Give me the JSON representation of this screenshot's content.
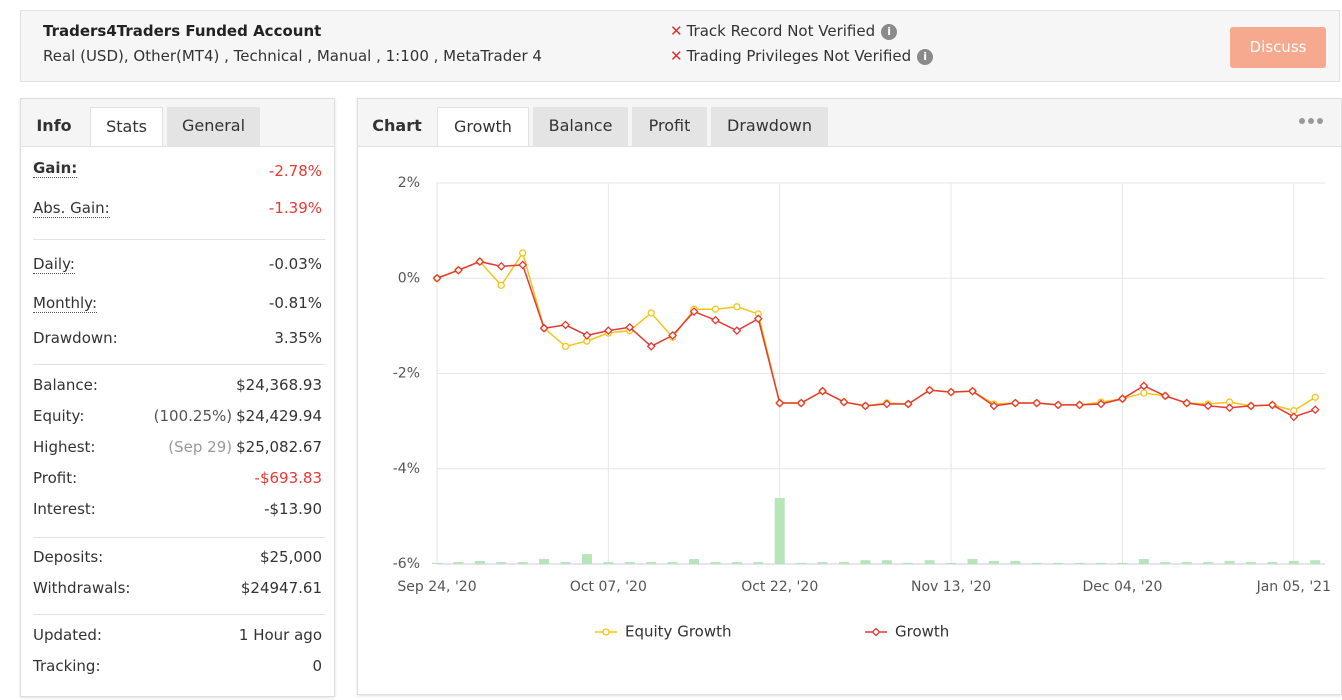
{
  "header": {
    "title": "Traders4Traders Funded Account",
    "subtitle": "Real (USD), Other(MT4) , Technical , Manual , 1:100 , MetaTrader 4",
    "warnings": [
      "Track Record Not Verified",
      "Trading Privileges Not Verified"
    ],
    "button": "Discuss"
  },
  "stats": {
    "tabs": [
      "Info",
      "Stats",
      "General"
    ],
    "groups": [
      [
        {
          "label": "Gain:",
          "value": "-2.78%"
        },
        {
          "label": "Abs. Gain:",
          "value": "-1.39%"
        }
      ],
      [
        {
          "label": "Daily:",
          "value": "-0.03%"
        },
        {
          "label": "Monthly:",
          "value": "-0.81%"
        },
        {
          "label": "Drawdown:",
          "value": "3.35%"
        }
      ],
      [
        {
          "label": "Balance:",
          "value": "$24,368.93"
        },
        {
          "label": "Equity:",
          "note": "(100.25%)",
          "value": "$24,429.94"
        },
        {
          "label": "Highest:",
          "note": "(Sep 29)",
          "value": "$25,082.67"
        },
        {
          "label": "Profit:",
          "value": "-$693.83"
        },
        {
          "label": "Interest:",
          "value": "-$13.90"
        }
      ],
      [
        {
          "label": "Deposits:",
          "value": "$25,000"
        },
        {
          "label": "Withdrawals:",
          "value": "$24947.61"
        }
      ],
      [
        {
          "label": "Updated:",
          "value": "1 Hour ago"
        },
        {
          "label": "Tracking:",
          "value": "0"
        }
      ]
    ]
  },
  "chart_tabs": [
    "Chart",
    "Growth",
    "Balance",
    "Profit",
    "Drawdown"
  ],
  "chart_data": {
    "type": "line",
    "categories": [
      "Sep 24, '20",
      null,
      null,
      null,
      null,
      null,
      null,
      null,
      "Oct 07, '20",
      null,
      null,
      null,
      null,
      null,
      null,
      null,
      "Oct 22, '20",
      null,
      null,
      null,
      null,
      null,
      null,
      null,
      "Nov 13, '20",
      null,
      null,
      null,
      null,
      null,
      null,
      null,
      "Dec 04, '20",
      null,
      null,
      null,
      null,
      null,
      null,
      null,
      "Jan 05, '21",
      null
    ],
    "series": [
      {
        "type": "bar",
        "axis": "y2",
        "color": "#b7e4b9",
        "values": [
          0.3,
          0.5,
          0.8,
          0.5,
          0.5,
          1.3,
          0.5,
          2.6,
          0.5,
          0.5,
          0.5,
          0.5,
          1.3,
          0.5,
          0.5,
          0.5,
          17.3,
          0.3,
          0.5,
          0.5,
          1,
          1,
          0.3,
          1,
          0.3,
          1.3,
          0.8,
          0.8,
          0.3,
          0.3,
          0.3,
          0.3,
          0.3,
          1.3,
          0.5,
          0.5,
          0.5,
          0.8,
          0.5,
          0.5,
          0.8,
          1
        ]
      },
      {
        "name": "Equity Growth",
        "color": "#f5c518",
        "marker": "circle",
        "values": [
          0,
          0.17,
          0.35,
          -0.15,
          0.53,
          -1.05,
          -1.43,
          -1.32,
          -1.15,
          -1.1,
          -0.73,
          -1.24,
          -0.65,
          -0.65,
          -0.6,
          -0.75,
          -2.62,
          -2.62,
          -2.37,
          -2.6,
          -2.68,
          -2.62,
          -2.64,
          -2.35,
          -2.39,
          -2.37,
          -2.64,
          -2.62,
          -2.62,
          -2.66,
          -2.66,
          -2.6,
          -2.53,
          -2.41,
          -2.47,
          -2.62,
          -2.64,
          -2.6,
          -2.68,
          -2.66,
          -2.78,
          -2.5
        ]
      },
      {
        "name": "Growth",
        "color": "#e53935",
        "marker": "diamond",
        "values": [
          0,
          0.17,
          0.35,
          0.25,
          0.28,
          -1.05,
          -0.98,
          -1.2,
          -1.1,
          -1.03,
          -1.43,
          -1.2,
          -0.7,
          -0.88,
          -1.1,
          -0.85,
          -2.62,
          -2.62,
          -2.37,
          -2.6,
          -2.68,
          -2.64,
          -2.64,
          -2.35,
          -2.39,
          -2.37,
          -2.68,
          -2.62,
          -2.62,
          -2.66,
          -2.66,
          -2.64,
          -2.53,
          -2.26,
          -2.47,
          -2.62,
          -2.68,
          -2.72,
          -2.68,
          -2.66,
          -2.91,
          -2.76
        ]
      }
    ],
    "ylim": [
      -6,
      2
    ],
    "yticks": [
      {
        "value": -6,
        "label": "-6%"
      },
      {
        "value": -4,
        "label": "-4%"
      },
      {
        "value": -2,
        "label": "-2%"
      },
      {
        "value": 0,
        "label": "0%"
      },
      {
        "value": 2,
        "label": "2%"
      }
    ],
    "y2lim": [
      0,
      100
    ],
    "grid": true,
    "legend": "bottom"
  }
}
